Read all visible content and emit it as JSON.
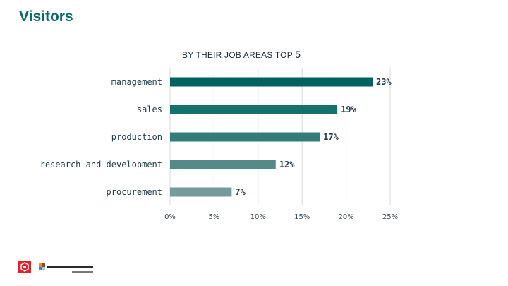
{
  "slide": {
    "title": "Visitors"
  },
  "chart_data": {
    "type": "bar",
    "orientation": "horizontal",
    "title_text": "BY THEIR JOB AREAS TOP",
    "title_number": "5",
    "categories": [
      "management",
      "sales",
      "production",
      "research and development",
      "procurement"
    ],
    "values": [
      23,
      19,
      17,
      12,
      7
    ],
    "value_labels": [
      "23%",
      "19%",
      "17%",
      "12%",
      "7%"
    ],
    "xlim": [
      0,
      25
    ],
    "ticks": [
      0,
      5,
      10,
      15,
      20,
      25
    ],
    "tick_labels": [
      "0%",
      "5%",
      "10%",
      "15%",
      "20%",
      "25%"
    ],
    "grid": "vertical",
    "bar_colors": [
      "#00625e",
      "#16706c",
      "#347c78",
      "#548a88",
      "#749a9a"
    ],
    "gridline_color": "#d9d9d9"
  }
}
